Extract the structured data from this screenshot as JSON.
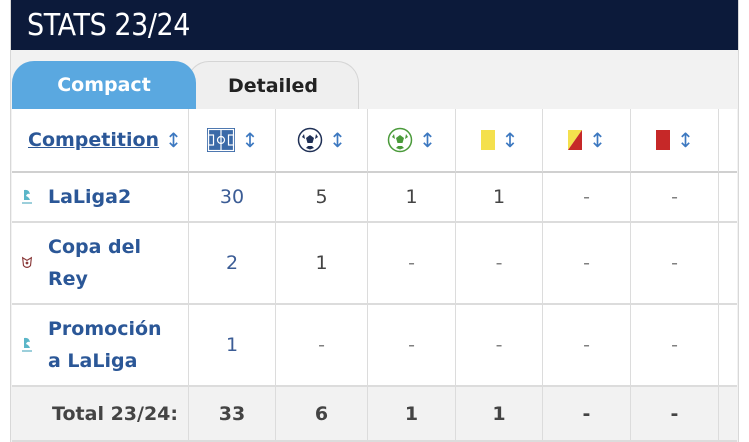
{
  "header": {
    "title": "STATS 23/24"
  },
  "tabs": [
    {
      "label": "Compact",
      "active": true
    },
    {
      "label": "Detailed",
      "active": false
    }
  ],
  "table": {
    "competition_header": "Competition",
    "sort_glyph": "↕",
    "column_icons": [
      "pitch-icon",
      "football-icon",
      "assist-ball-icon",
      "yellow-card-icon",
      "second-yellow-card-icon",
      "red-card-icon"
    ],
    "rows": [
      {
        "competition": "LaLiga2",
        "logo": "laliga2-logo",
        "values": [
          "30",
          "5",
          "1",
          "1",
          "-",
          "-"
        ]
      },
      {
        "competition": "Copa del Rey",
        "competition_lines": [
          "Copa del",
          "Rey"
        ],
        "logo": "copa-del-rey-logo",
        "values": [
          "2",
          "1",
          "-",
          "-",
          "-",
          "-"
        ]
      },
      {
        "competition": "Promoción a LaLiga",
        "competition_lines": [
          "Promoción",
          "a LaLiga"
        ],
        "logo": "laliga-promocion-logo",
        "values": [
          "1",
          "-",
          "-",
          "-",
          "-",
          "-"
        ]
      }
    ],
    "total": {
      "label": "Total 23/24:",
      "values": [
        "33",
        "6",
        "1",
        "1",
        "-",
        "-"
      ]
    }
  },
  "colors": {
    "header_bg": "#0c1a3a",
    "active_tab": "#5aa8e0",
    "link": "#2b5797",
    "yellow_card": "#f4e04d",
    "red_card": "#c62828"
  }
}
